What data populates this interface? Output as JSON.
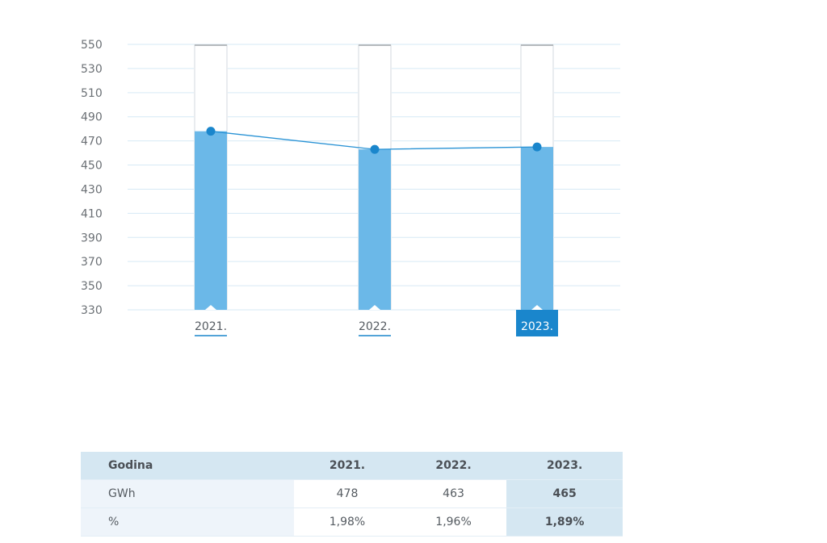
{
  "chart_data": {
    "type": "bar",
    "categories": [
      "2021.",
      "2022.",
      "2023."
    ],
    "values": [
      478,
      463,
      465
    ],
    "line_values": [
      478,
      463,
      465
    ],
    "highlighted_category": "2023.",
    "yticks": [
      330,
      350,
      370,
      390,
      410,
      430,
      450,
      470,
      490,
      510,
      530,
      550
    ],
    "ylim": [
      330,
      550
    ],
    "grid": true,
    "colors": {
      "bar": "#6bb8e8",
      "line": "#2a93d5",
      "point": "#1a86cc",
      "highlight": "#1a86cc",
      "grid": "#d6e9f5",
      "track": "#ffffff"
    }
  },
  "table": {
    "header": [
      "Godina",
      "2021.",
      "2022.",
      "2023."
    ],
    "rows": [
      {
        "label": "GWh",
        "cells": [
          "478",
          "463",
          "465"
        ]
      },
      {
        "label": "%",
        "cells": [
          "1,98%",
          "1,96%",
          "1,89%"
        ]
      }
    ]
  }
}
